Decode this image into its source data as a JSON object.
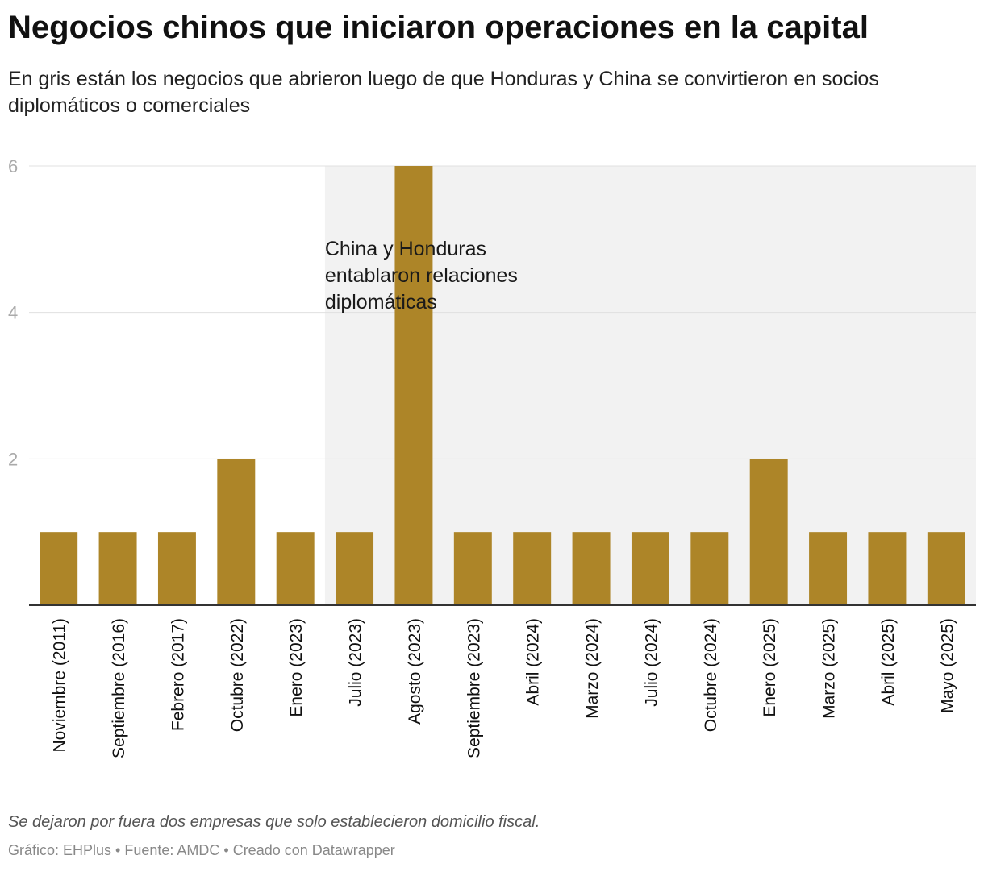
{
  "chart_data": {
    "type": "bar",
    "title": "Negocios chinos que iniciaron operaciones en la capital",
    "subtitle": "En gris están los negocios que abrieron luego de que Honduras y China se convirtieron en socios diplomáticos o comerciales",
    "categories": [
      "Noviembre (2011)",
      "Septiembre (2016)",
      "Febrero (2017)",
      "Octubre (2022)",
      "Enero (2023)",
      "Julio (2023)",
      "Agosto (2023)",
      "Septiembre (2023)",
      "Abril (2024)",
      "Marzo (2024)",
      "Julio (2024)",
      "Octubre (2024)",
      "Enero (2025)",
      "Marzo (2025)",
      "Abril (2025)",
      "Mayo (2025)"
    ],
    "values": [
      1,
      1,
      1,
      2,
      1,
      1,
      6,
      1,
      1,
      1,
      1,
      1,
      2,
      1,
      1,
      1
    ],
    "ylim": [
      0,
      6
    ],
    "yticks": [
      2,
      4,
      6
    ],
    "xlabel": "",
    "ylabel": "",
    "highlight_start_category": "Julio (2023)",
    "annotation": "China y Honduras entablaron relaciones diplomáticas",
    "colors": {
      "bar": "#ad8528",
      "highlight": "#f2f2f2",
      "grid": "#e0e0e0",
      "axis": "#333333",
      "tick": "#aaaaaa"
    }
  },
  "notes": "Se dejaron por fuera dos empresas que solo establecieron domicilio fiscal.",
  "credit": "Gráfico: EHPlus • Fuente: AMDC • Creado con Datawrapper"
}
